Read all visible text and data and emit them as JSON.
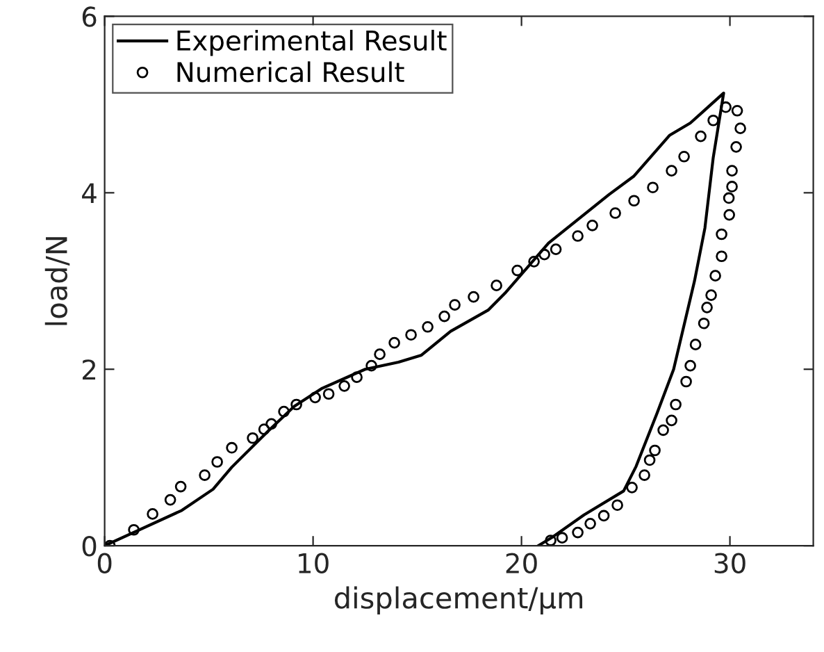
{
  "chart_data": {
    "type": "line",
    "xlabel": "displacement/μm",
    "ylabel": "load/N",
    "xlim": [
      0,
      34
    ],
    "ylim": [
      0,
      6
    ],
    "xticks": [
      0,
      10,
      20,
      30
    ],
    "yticks": [
      0,
      2,
      4,
      6
    ],
    "grid": false,
    "legend": "top left",
    "series": [
      {
        "name": "Experimental Result",
        "color": "#000000",
        "marker": "none",
        "line_style": "solid",
        "x": [
          0,
          3.7,
          5.2,
          6.1,
          7.85,
          9.1,
          10.4,
          12.5,
          14.1,
          15.2,
          16.6,
          18.4,
          19.2,
          21.3,
          24.2,
          25.4,
          27.1,
          28.1,
          29.7,
          29.2,
          28.8,
          28.3,
          27.8,
          27.3,
          26.5,
          25.5,
          24.9,
          23,
          21.5,
          20.8
        ],
        "values": [
          0,
          0.4,
          0.64,
          0.89,
          1.3,
          1.58,
          1.78,
          2.0,
          2.08,
          2.16,
          2.43,
          2.67,
          2.86,
          3.43,
          3.98,
          4.19,
          4.65,
          4.79,
          5.13,
          4.4,
          3.6,
          3.0,
          2.5,
          2.0,
          1.5,
          0.9,
          0.62,
          0.35,
          0.1,
          0
        ]
      },
      {
        "name": "Numerical Result",
        "type": "scatter",
        "color": "#000000",
        "marker": "circle",
        "x": [
          0.25,
          1.4,
          2.3,
          3.15,
          3.65,
          4.8,
          5.4,
          6.1,
          7.1,
          7.65,
          8.0,
          8.6,
          9.2,
          10.1,
          10.75,
          11.5,
          12.1,
          12.8,
          13.2,
          13.9,
          14.7,
          15.5,
          16.3,
          16.8,
          17.7,
          18.8,
          19.8,
          20.6,
          21.1,
          21.65,
          22.7,
          23.4,
          24.5,
          25.4,
          26.3,
          27.2,
          27.8,
          28.6,
          29.2,
          29.8,
          30.35,
          30.5,
          30.3,
          30.1,
          30.1,
          29.95,
          29.97,
          29.6,
          29.6,
          29.3,
          29.1,
          28.9,
          28.75,
          28.35,
          28.1,
          27.9,
          27.4,
          27.2,
          26.8,
          26.4,
          26.15,
          25.9,
          25.3,
          24.6,
          23.95,
          23.3,
          22.7,
          21.95,
          21.4
        ],
        "values": [
          0,
          0.18,
          0.36,
          0.52,
          0.67,
          0.8,
          0.95,
          1.11,
          1.22,
          1.32,
          1.38,
          1.52,
          1.6,
          1.68,
          1.72,
          1.81,
          1.91,
          2.04,
          2.17,
          2.3,
          2.39,
          2.48,
          2.6,
          2.73,
          2.82,
          2.95,
          3.12,
          3.22,
          3.3,
          3.36,
          3.51,
          3.63,
          3.77,
          3.91,
          4.06,
          4.25,
          4.41,
          4.64,
          4.82,
          4.97,
          4.93,
          4.73,
          4.52,
          4.25,
          4.07,
          3.94,
          3.75,
          3.53,
          3.28,
          3.06,
          2.84,
          2.7,
          2.52,
          2.28,
          2.04,
          1.86,
          1.6,
          1.42,
          1.31,
          1.08,
          0.97,
          0.8,
          0.66,
          0.46,
          0.34,
          0.25,
          0.15,
          0.09,
          0.06
        ]
      }
    ]
  }
}
